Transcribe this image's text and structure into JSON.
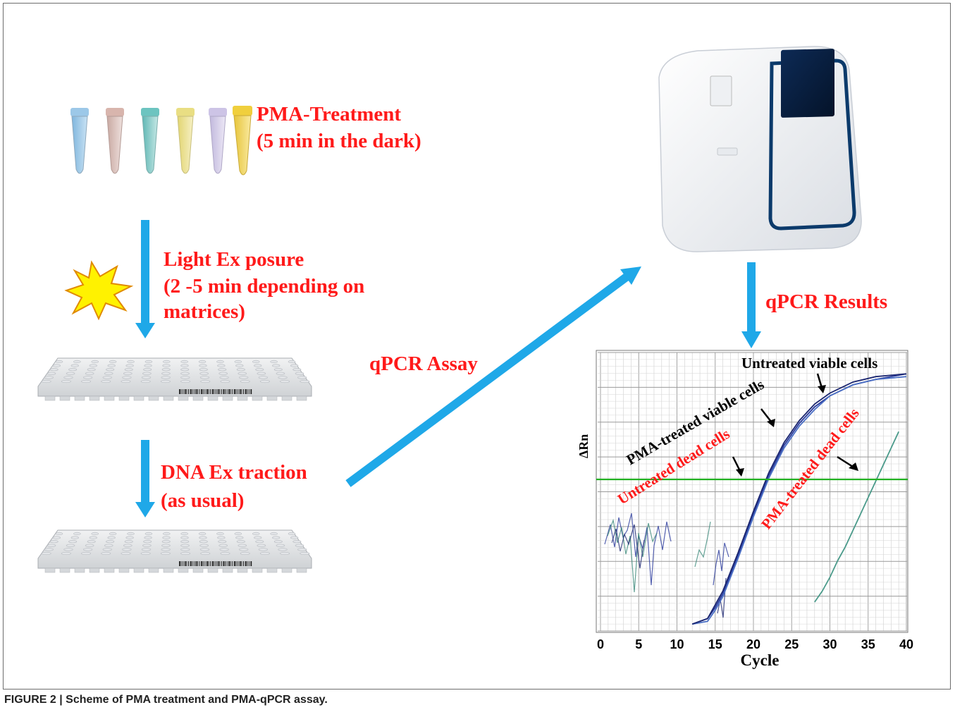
{
  "figure": {
    "caption": "FIGURE 2 | Scheme of PMA treatment and PMA-qPCR assay."
  },
  "steps": {
    "pma_treatment": {
      "line1": "PMA-Treatment",
      "line2": "(5 min in the dark)"
    },
    "light_exposure": {
      "line1": "Light Ex posure",
      "line2": "(2 -5 min depending on",
      "line3": "matrices)"
    },
    "dna_extraction": {
      "line1": "DNA Ex traction",
      "line2": "(as usual)"
    },
    "qpcr_assay": "qPCR  Assay",
    "qpcr_results": "qPCR Results"
  },
  "colors": {
    "text_red": "#ff1a1a",
    "arrow_blue": "#1fa8e8",
    "threshold_green": "#22b022",
    "curve_blue": "#2a3b9c"
  },
  "icons": {
    "tubes": "microcentrifuge-tubes",
    "burst": "light-burst-icon",
    "plate": "96-well-plate",
    "instrument": "qpcr-instrument"
  },
  "chart_data": {
    "type": "line",
    "xlabel": "Cycle",
    "ylabel": "ΔRn",
    "x_ticks": [
      0,
      5,
      10,
      15,
      20,
      25,
      30,
      35,
      40
    ],
    "xlim": [
      0,
      40
    ],
    "grid": true,
    "annotations": [
      {
        "text": "Untreated viable cells",
        "color": "#000000"
      },
      {
        "text": "PMA-treated viable cells",
        "color": "#000000"
      },
      {
        "text": "Untreated dead cells",
        "color": "#ff1a1a"
      },
      {
        "text": "PMA-treated dead cells",
        "color": "#ff1a1a"
      }
    ],
    "series": [
      {
        "x": [
          12,
          14,
          15,
          16,
          17,
          18,
          20,
          22,
          24,
          26,
          28,
          30,
          33,
          36,
          40
        ],
        "y": [
          0.02,
          0.04,
          0.08,
          0.13,
          0.2,
          0.27,
          0.42,
          0.56,
          0.67,
          0.75,
          0.81,
          0.85,
          0.89,
          0.91,
          0.93
        ]
      },
      {
        "x": [
          12,
          14,
          15,
          16,
          17,
          18,
          20,
          22,
          24,
          26,
          28,
          30,
          33,
          36,
          40
        ],
        "y": [
          0.02,
          0.03,
          0.07,
          0.12,
          0.19,
          0.26,
          0.41,
          0.55,
          0.66,
          0.74,
          0.8,
          0.85,
          0.89,
          0.91,
          0.92
        ]
      },
      {
        "x": [
          12,
          14,
          15,
          16,
          17,
          18,
          20,
          22,
          24,
          26,
          28,
          30,
          33,
          36,
          40
        ],
        "y": [
          0.02,
          0.04,
          0.09,
          0.14,
          0.21,
          0.28,
          0.43,
          0.57,
          0.68,
          0.76,
          0.82,
          0.86,
          0.9,
          0.92,
          0.93
        ]
      },
      {
        "x": [
          28,
          29,
          30,
          31,
          32,
          33,
          34,
          35,
          36,
          37,
          38,
          39
        ],
        "y": [
          0.1,
          0.14,
          0.19,
          0.25,
          0.3,
          0.36,
          0.42,
          0.48,
          0.54,
          0.6,
          0.66,
          0.72
        ]
      }
    ],
    "threshold": 0.32
  }
}
